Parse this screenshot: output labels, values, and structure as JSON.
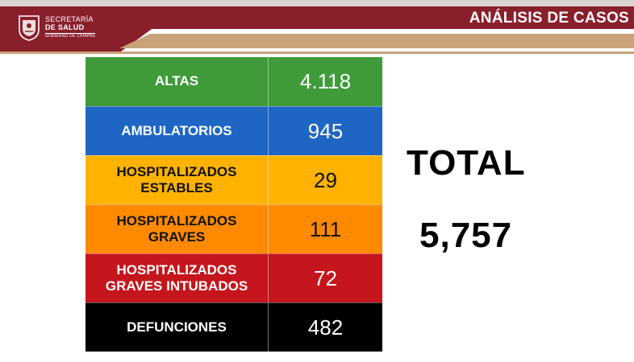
{
  "header": {
    "logo_line1": "SECRETARÍA",
    "logo_line2": "DE SALUD",
    "logo_line3": "GOBIERNO DE CHIAPAS",
    "title": "ANÁLISIS DE CASOS",
    "colors": {
      "maroon": "#8a1f2c",
      "tan": "#c9a27a"
    }
  },
  "table": {
    "rows": [
      {
        "label": "ALTAS",
        "value": "4.118",
        "bg": "#3f9b3a",
        "fg": "#ffffff"
      },
      {
        "label": "AMBULATORIOS",
        "value": "945",
        "bg": "#1f66c4",
        "fg": "#ffffff"
      },
      {
        "label": "HOSPITALIZADOS\nESTABLES",
        "value": "29",
        "bg": "#ffb300",
        "fg": "#111111"
      },
      {
        "label": "HOSPITALIZADOS\nGRAVES",
        "value": "111",
        "bg": "#ff8a00",
        "fg": "#111111"
      },
      {
        "label": "HOSPITALIZADOS\nGRAVES INTUBADOS",
        "value": "72",
        "bg": "#c4161c",
        "fg": "#ffffff"
      },
      {
        "label": "DEFUNCIONES",
        "value": "482",
        "bg": "#000000",
        "fg": "#ffffff"
      }
    ]
  },
  "total": {
    "label": "TOTAL",
    "value": "5,757"
  }
}
